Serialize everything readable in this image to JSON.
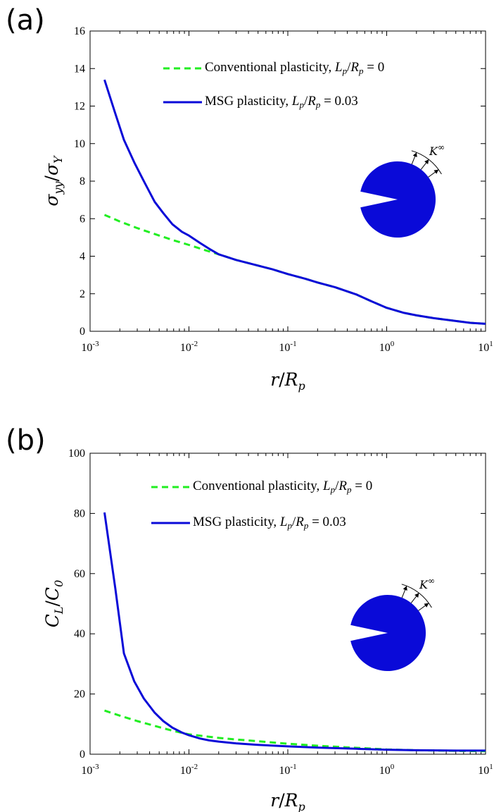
{
  "chart_data": [
    {
      "panel": "(a)",
      "type": "line",
      "xlabel": "r/R_p",
      "ylabel": "σ_yy/σ_Y",
      "xscale": "log",
      "xlim": [
        0.001,
        10
      ],
      "ylim": [
        0,
        16
      ],
      "xticks": [
        {
          "base": "10",
          "exp": "-3"
        },
        {
          "base": "10",
          "exp": "-2"
        },
        {
          "base": "10",
          "exp": "-1"
        },
        {
          "base": "10",
          "exp": "0"
        },
        {
          "base": "10",
          "exp": "1"
        }
      ],
      "yticks": [
        "0",
        "2",
        "4",
        "6",
        "8",
        "10",
        "12",
        "14",
        "16"
      ],
      "legend_position": "top-right",
      "inset_label": "K^∞",
      "series": [
        {
          "name": "Conventional plasticity, L_p/R_p = 0",
          "color": "#22ee22",
          "style": "dashed",
          "x": [
            0.0014,
            0.002,
            0.003,
            0.005,
            0.007,
            0.01,
            0.015,
            0.02,
            0.03,
            0.05,
            0.07,
            0.1,
            0.15,
            0.2,
            0.3,
            0.5,
            0.7,
            1.0,
            1.5,
            2.0,
            3.0,
            5.0,
            7.0,
            10.0
          ],
          "y": [
            6.2,
            5.85,
            5.5,
            5.1,
            4.85,
            4.6,
            4.3,
            4.1,
            3.8,
            3.5,
            3.3,
            3.05,
            2.8,
            2.6,
            2.35,
            1.95,
            1.6,
            1.25,
            0.98,
            0.85,
            0.7,
            0.55,
            0.45,
            0.4
          ]
        },
        {
          "name": "MSG plasticity, L_p/R_p = 0.03",
          "color": "#0a0ad8",
          "style": "solid",
          "x": [
            0.0014,
            0.0018,
            0.0022,
            0.0028,
            0.0035,
            0.0045,
            0.0055,
            0.0068,
            0.0085,
            0.01,
            0.013,
            0.016,
            0.02,
            0.03,
            0.05,
            0.07,
            0.1,
            0.15,
            0.2,
            0.3,
            0.5,
            0.7,
            1.0,
            1.5,
            2.0,
            3.0,
            5.0,
            7.0,
            10.0
          ],
          "y": [
            13.4,
            11.6,
            10.2,
            9.0,
            8.0,
            6.9,
            6.3,
            5.7,
            5.3,
            5.1,
            4.7,
            4.4,
            4.1,
            3.8,
            3.5,
            3.3,
            3.05,
            2.8,
            2.6,
            2.35,
            1.95,
            1.6,
            1.25,
            0.98,
            0.85,
            0.7,
            0.55,
            0.45,
            0.4
          ]
        }
      ]
    },
    {
      "panel": "(b)",
      "type": "line",
      "xlabel": "r/R_p",
      "ylabel": "C_L/C_0",
      "xscale": "log",
      "xlim": [
        0.001,
        10
      ],
      "ylim": [
        0,
        100
      ],
      "xticks": [
        {
          "base": "10",
          "exp": "-3"
        },
        {
          "base": "10",
          "exp": "-2"
        },
        {
          "base": "10",
          "exp": "-1"
        },
        {
          "base": "10",
          "exp": "0"
        },
        {
          "base": "10",
          "exp": "1"
        }
      ],
      "yticks": [
        "0",
        "20",
        "40",
        "60",
        "80",
        "100"
      ],
      "legend_position": "top-right",
      "inset_label": "K^∞",
      "series": [
        {
          "name": "Conventional plasticity, L_p/R_p = 0",
          "color": "#22ee22",
          "style": "dashed",
          "x": [
            0.0014,
            0.002,
            0.003,
            0.005,
            0.007,
            0.01,
            0.015,
            0.02,
            0.03,
            0.05,
            0.1,
            0.2,
            0.5,
            1.0,
            2.0,
            5.0,
            10.0
          ],
          "y": [
            14.5,
            12.8,
            11.0,
            9.0,
            7.7,
            6.6,
            5.9,
            5.4,
            4.9,
            4.3,
            3.5,
            2.8,
            2.1,
            1.6,
            1.3,
            1.1,
            1.0
          ]
        },
        {
          "name": "MSG plasticity, L_p/R_p = 0.03",
          "color": "#0a0ad8",
          "style": "solid",
          "x": [
            0.0014,
            0.0018,
            0.0022,
            0.0028,
            0.0035,
            0.0045,
            0.0055,
            0.0068,
            0.0085,
            0.01,
            0.013,
            0.016,
            0.02,
            0.03,
            0.05,
            0.1,
            0.2,
            0.5,
            1.0,
            2.0,
            5.0,
            10.0
          ],
          "y": [
            80.3,
            55.0,
            33.5,
            24.2,
            18.5,
            13.8,
            11.0,
            8.8,
            7.2,
            6.3,
            5.2,
            4.6,
            4.2,
            3.6,
            3.1,
            2.6,
            2.2,
            1.8,
            1.5,
            1.3,
            1.2,
            1.2
          ]
        }
      ]
    }
  ]
}
